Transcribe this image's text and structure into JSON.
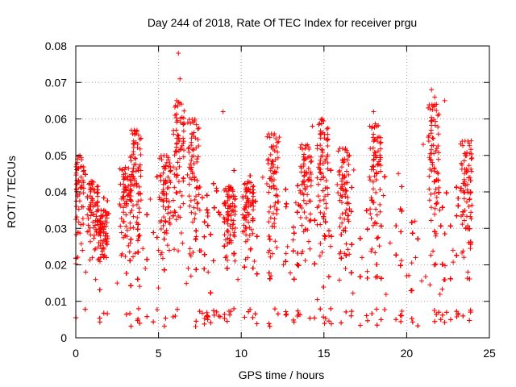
{
  "chart_data": {
    "type": "scatter",
    "title": "Day 244 of 2018, Rate Of TEC Index for receiver prgu",
    "xlabel": "GPS time / hours",
    "ylabel": "ROTI / TECUs",
    "xlim": [
      0,
      25
    ],
    "ylim": [
      0,
      0.08
    ],
    "xticks": [
      0,
      5,
      10,
      15,
      20,
      25
    ],
    "xtick_labels": [
      "0",
      "5",
      "10",
      "15",
      "20",
      "25"
    ],
    "yticks": [
      0,
      0.01,
      0.02,
      0.03,
      0.04,
      0.05,
      0.06,
      0.07,
      0.08
    ],
    "ytick_labels": [
      "0",
      "0.01",
      "0.02",
      "0.03",
      "0.04",
      "0.05",
      "0.06",
      "0.07",
      "0.08"
    ],
    "grid": true,
    "series": [
      {
        "name": "ROTI",
        "marker": "+",
        "color": "#ff0000",
        "x": [
          0.1,
          0.3,
          0.6,
          1.0,
          1.2,
          1.5,
          2.0,
          2.5,
          3.0,
          3.3,
          3.6,
          4.2,
          4.5,
          5.0,
          5.5,
          6.0,
          6.1,
          6.2,
          6.3,
          6.5,
          6.9,
          7.1,
          7.5,
          8.0,
          8.5,
          8.9,
          9.3,
          9.8,
          10.3,
          10.8,
          11.3,
          11.8,
          12.3,
          12.8,
          13.3,
          13.8,
          14.3,
          14.6,
          14.9,
          15.3,
          15.8,
          16.3,
          16.8,
          17.3,
          17.8,
          18.0,
          18.2,
          18.6,
          19.0,
          19.5,
          20.0,
          20.5,
          21.0,
          21.3,
          21.5,
          21.7,
          21.8,
          21.9,
          22.0,
          22.3,
          22.8,
          23.3,
          23.7,
          23.9
        ],
        "y": [
          0.048,
          0.031,
          0.018,
          0.042,
          0.016,
          0.022,
          0.034,
          0.015,
          0.045,
          0.026,
          0.056,
          0.019,
          0.038,
          0.024,
          0.048,
          0.061,
          0.065,
          0.078,
          0.071,
          0.043,
          0.023,
          0.059,
          0.035,
          0.018,
          0.041,
          0.062,
          0.027,
          0.016,
          0.033,
          0.021,
          0.044,
          0.017,
          0.055,
          0.025,
          0.037,
          0.049,
          0.058,
          0.031,
          0.06,
          0.028,
          0.042,
          0.019,
          0.046,
          0.022,
          0.034,
          0.062,
          0.058,
          0.039,
          0.026,
          0.045,
          0.017,
          0.032,
          0.053,
          0.063,
          0.068,
          0.066,
          0.064,
          0.045,
          0.035,
          0.065,
          0.024,
          0.041,
          0.018,
          0.054
        ]
      }
    ],
    "density": {
      "baseline_min": 0.007,
      "baseline_max": 0.027,
      "spread_max": 0.046,
      "clusters": [
        {
          "x": 0.15,
          "peak": 0.05
        },
        {
          "x": 1.0,
          "peak": 0.043
        },
        {
          "x": 1.6,
          "peak": 0.035
        },
        {
          "x": 3.0,
          "peak": 0.047
        },
        {
          "x": 3.6,
          "peak": 0.057
        },
        {
          "x": 5.4,
          "peak": 0.05
        },
        {
          "x": 6.2,
          "peak": 0.065
        },
        {
          "x": 7.1,
          "peak": 0.06
        },
        {
          "x": 9.3,
          "peak": 0.041
        },
        {
          "x": 10.4,
          "peak": 0.043
        },
        {
          "x": 11.9,
          "peak": 0.056
        },
        {
          "x": 13.9,
          "peak": 0.053
        },
        {
          "x": 14.9,
          "peak": 0.06
        },
        {
          "x": 16.2,
          "peak": 0.052
        },
        {
          "x": 18.1,
          "peak": 0.059
        },
        {
          "x": 21.6,
          "peak": 0.064
        },
        {
          "x": 23.6,
          "peak": 0.054
        }
      ]
    }
  }
}
